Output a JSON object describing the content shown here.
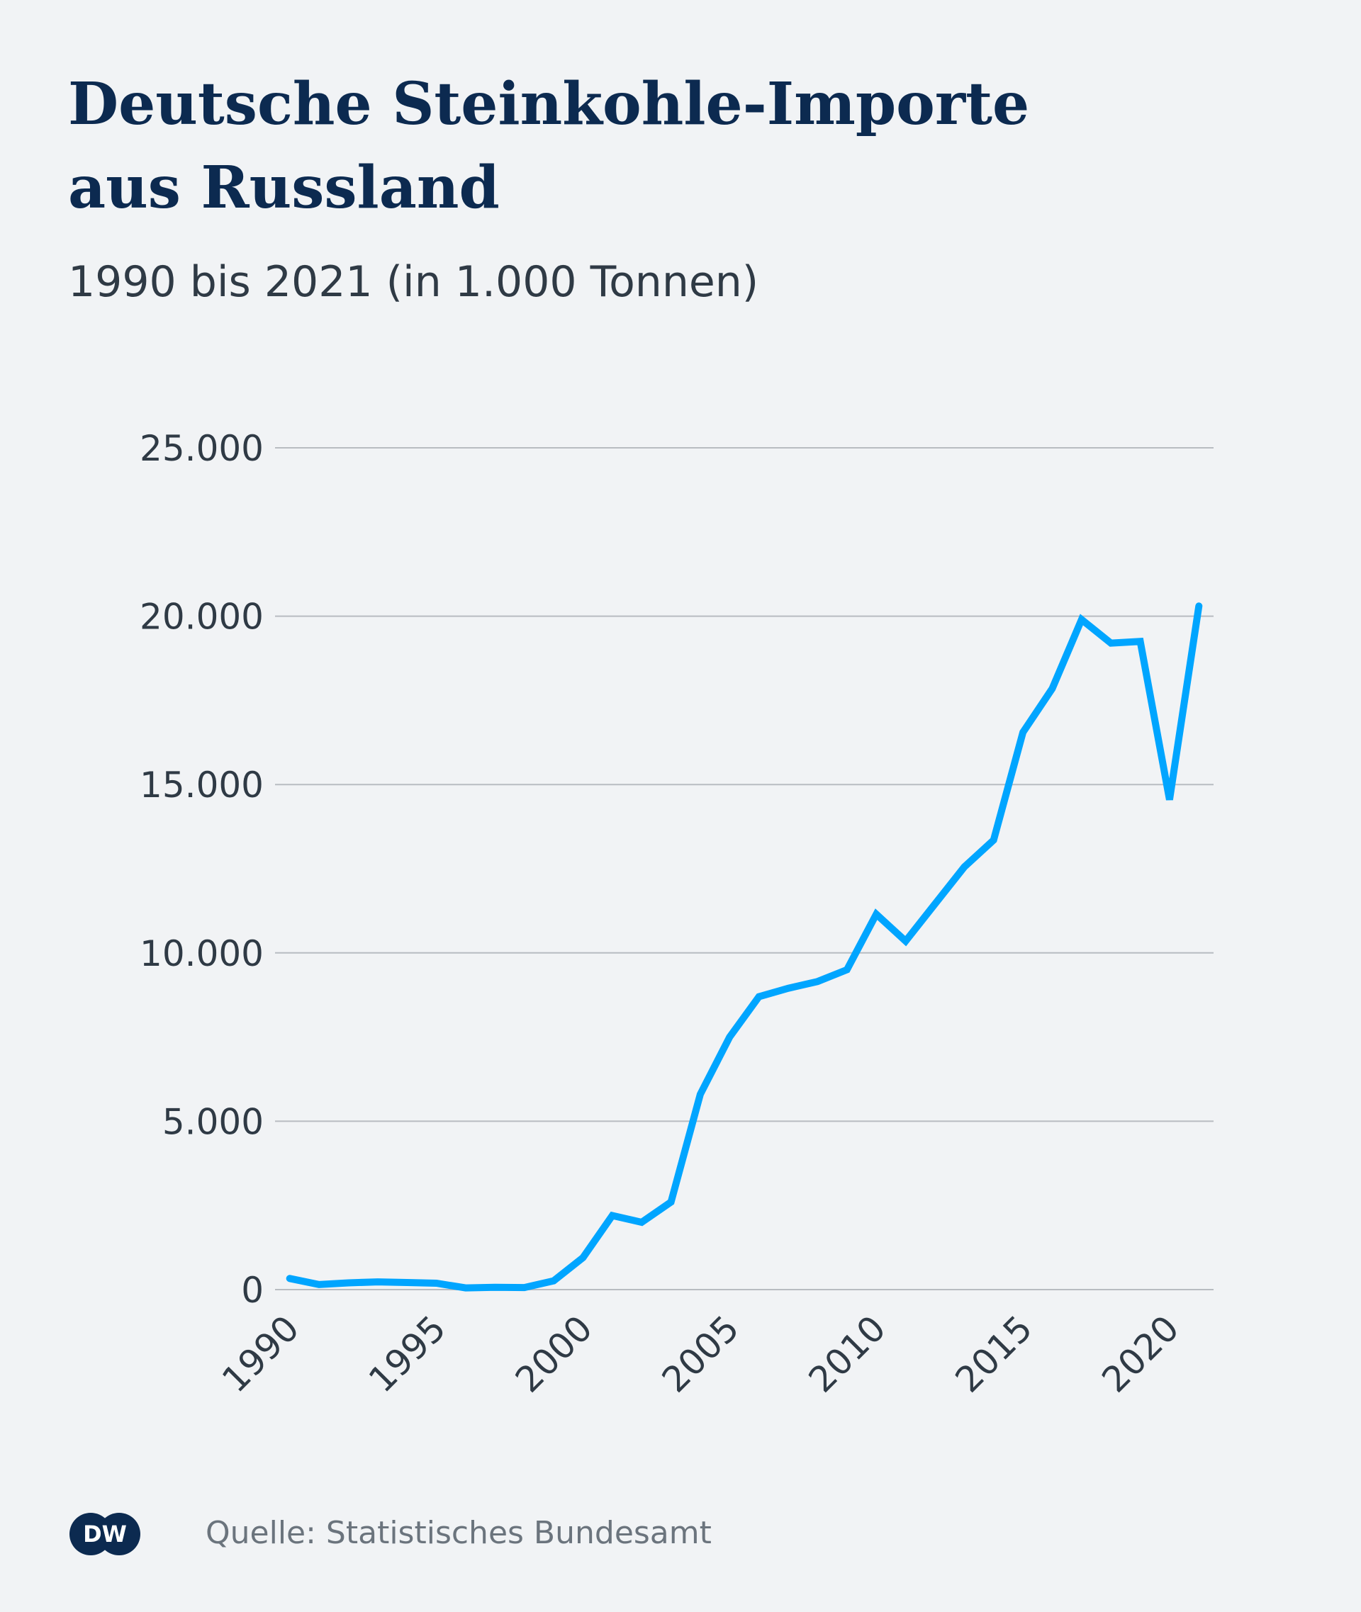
{
  "header": {
    "title": "Deutsche Steinkohle-Importe aus Russland",
    "subtitle": "1990 bis 2021 (in 1.000 Tonnen)"
  },
  "footer": {
    "source": "Quelle: Statistisches Bundesamt",
    "logo_text": "DW"
  },
  "colors": {
    "background": "#f1f3f5",
    "title": "#0c2a50",
    "line": "#00a5ff",
    "grid": "#b8bcc1",
    "text": "#2f3a45",
    "source": "#6b747d"
  },
  "chart_data": {
    "type": "line",
    "x": [
      1990,
      1991,
      1992,
      1993,
      1994,
      1995,
      1996,
      1997,
      1998,
      1999,
      2000,
      2001,
      2002,
      2003,
      2004,
      2005,
      2006,
      2007,
      2008,
      2009,
      2010,
      2011,
      2012,
      2013,
      2014,
      2015,
      2016,
      2017,
      2018,
      2019,
      2020,
      2021
    ],
    "series": [
      {
        "values": [
          330,
          150,
          200,
          230,
          210,
          190,
          50,
          70,
          60,
          260,
          950,
          2200,
          2000,
          2600,
          5800,
          7500,
          8700,
          8950,
          9150,
          9500,
          11150,
          10350,
          11450,
          12550,
          13350,
          16550,
          17850,
          19900,
          19200,
          19250,
          14550,
          20300
        ]
      }
    ],
    "title": "Deutsche Steinkohle-Importe aus Russland",
    "subtitle": "1990 bis 2021 (in 1.000 Tonnen)",
    "ylim": [
      0,
      25000
    ],
    "yticks": [
      0,
      5000,
      10000,
      15000,
      20000,
      25000
    ],
    "ytick_labels": [
      "0",
      "5.000",
      "10.000",
      "15.000",
      "20.000",
      "25.000"
    ],
    "xticks": [
      1990,
      1995,
      2000,
      2005,
      2010,
      2015,
      2020
    ],
    "xtick_labels": [
      "1990",
      "1995",
      "2000",
      "2005",
      "2010",
      "2015",
      "2020"
    ],
    "xlim": [
      1989.5,
      2021.5
    ],
    "grid": true,
    "legend": "none"
  }
}
